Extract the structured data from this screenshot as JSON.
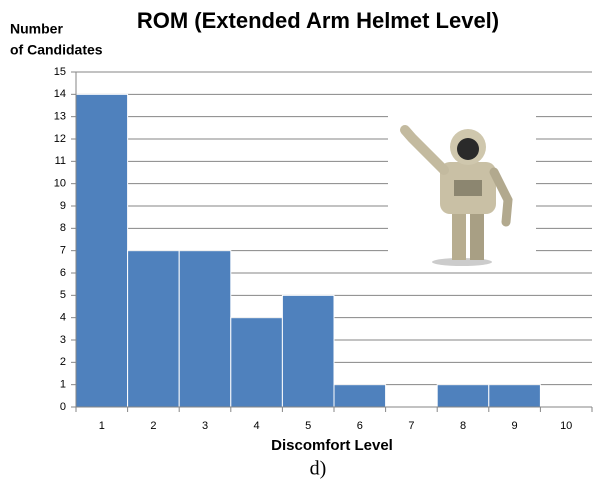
{
  "chart_data": {
    "type": "bar",
    "title": "ROM (Extended Arm Helmet Level)",
    "y_label": [
      "Number",
      "of Candidates"
    ],
    "x_label": "Discomfort Level",
    "categories": [
      "1",
      "2",
      "3",
      "4",
      "5",
      "6",
      "7",
      "8",
      "9",
      "10"
    ],
    "values": [
      14,
      7,
      7,
      4,
      5,
      1,
      0,
      1,
      1,
      0
    ],
    "color": "#4f81bd",
    "ylim": [
      0,
      15
    ],
    "yticks": [
      0,
      1,
      2,
      3,
      4,
      5,
      6,
      7,
      8,
      9,
      10,
      11,
      12,
      13,
      14,
      15
    ],
    "grid": true
  },
  "caption": "d)"
}
